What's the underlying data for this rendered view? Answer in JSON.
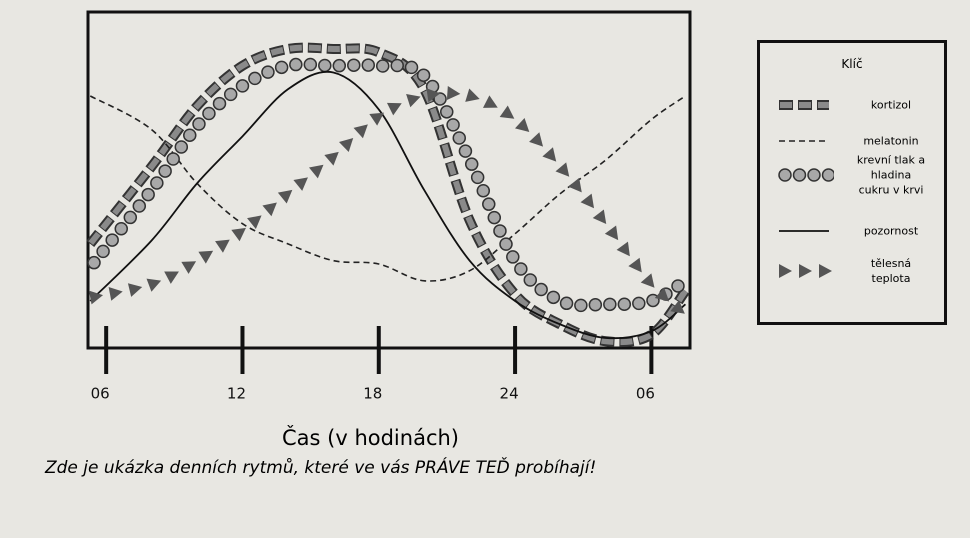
{
  "chart_data": {
    "type": "line",
    "x": [
      5.3,
      8,
      10,
      12,
      14,
      16,
      18,
      20,
      22,
      24,
      26,
      28,
      30,
      31.5
    ],
    "xlim": [
      5.2,
      31.7
    ],
    "xticks": [
      {
        "value": 6,
        "label": "06"
      },
      12,
      18,
      24,
      {
        "value": 30,
        "label": "06"
      }
    ],
    "ylim": [
      0,
      100
    ],
    "xlabel": "Čas (v hodinách)",
    "caption": "Zde je ukázka denních rytmů, které ve vás PRÁVE TEĎ probíhají!",
    "legend_title": "Klíč",
    "legend": "right",
    "series": [
      {
        "name": "kortizol",
        "color": "#8a8a8a",
        "style": "dash-square",
        "values": [
          31,
          54,
          72,
          84,
          89,
          89,
          88,
          77,
          38,
          16,
          7,
          2,
          4,
          17
        ]
      },
      {
        "name": "melatonin",
        "color": "#222222",
        "style": "dash",
        "values": [
          75,
          65,
          49,
          37,
          31,
          26,
          25,
          20,
          23,
          34,
          46,
          56,
          68,
          75
        ]
      },
      {
        "name": "krevní tlak a hladina cukru v krvi",
        "color": "#a8a8a8",
        "style": "circle",
        "values": [
          24,
          47,
          66,
          78,
          84,
          84,
          84,
          81,
          56,
          26,
          14,
          13,
          14,
          20
        ]
      },
      {
        "name": "pozornost",
        "color": "#111111",
        "style": "solid",
        "values": [
          14,
          32,
          49,
          63,
          77,
          82,
          71,
          47,
          26,
          14,
          7,
          3,
          5,
          13
        ]
      },
      {
        "name": "tělesná teplota",
        "color": "#555555",
        "style": "triangle",
        "values": [
          15,
          19,
          26,
          35,
          46,
          57,
          69,
          75,
          75,
          68,
          54,
          37,
          19,
          10
        ]
      }
    ]
  }
}
